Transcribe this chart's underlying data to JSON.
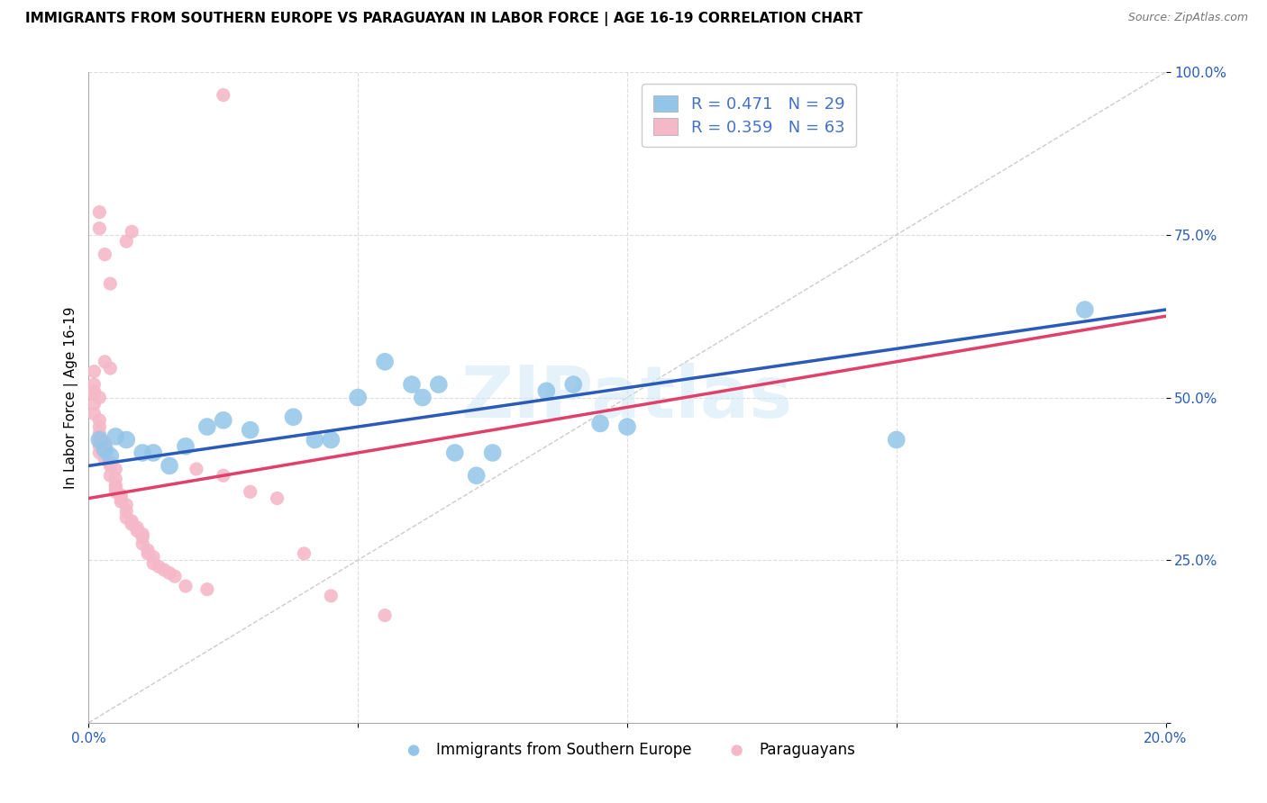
{
  "title": "IMMIGRANTS FROM SOUTHERN EUROPE VS PARAGUAYAN IN LABOR FORCE | AGE 16-19 CORRELATION CHART",
  "source": "Source: ZipAtlas.com",
  "ylabel": "In Labor Force | Age 16-19",
  "ylim": [
    0.0,
    1.0
  ],
  "xlim": [
    0.0,
    0.2
  ],
  "yticks": [
    0.0,
    0.25,
    0.5,
    0.75,
    1.0
  ],
  "ytick_labels": [
    "",
    "25.0%",
    "50.0%",
    "75.0%",
    "100.0%"
  ],
  "xticks": [
    0.0,
    0.05,
    0.1,
    0.15,
    0.2
  ],
  "xtick_labels": [
    "0.0%",
    "",
    "",
    "",
    "20.0%"
  ],
  "legend_r1": "R = 0.471   N = 29",
  "legend_r2": "R = 0.359   N = 63",
  "blue_color": "#92c5e8",
  "pink_color": "#f4b8c8",
  "blue_line_color": "#2b5bb8",
  "pink_line_color": "#e0406a",
  "diag_color": "#cccccc",
  "legend_text_color": "#4472c4",
  "blue_scatter": [
    [
      0.002,
      0.435
    ],
    [
      0.003,
      0.42
    ],
    [
      0.004,
      0.41
    ],
    [
      0.005,
      0.44
    ],
    [
      0.007,
      0.435
    ],
    [
      0.01,
      0.415
    ],
    [
      0.012,
      0.415
    ],
    [
      0.015,
      0.395
    ],
    [
      0.018,
      0.425
    ],
    [
      0.022,
      0.455
    ],
    [
      0.025,
      0.465
    ],
    [
      0.03,
      0.45
    ],
    [
      0.038,
      0.47
    ],
    [
      0.042,
      0.435
    ],
    [
      0.045,
      0.435
    ],
    [
      0.05,
      0.5
    ],
    [
      0.055,
      0.555
    ],
    [
      0.06,
      0.52
    ],
    [
      0.062,
      0.5
    ],
    [
      0.065,
      0.52
    ],
    [
      0.068,
      0.415
    ],
    [
      0.072,
      0.38
    ],
    [
      0.075,
      0.415
    ],
    [
      0.085,
      0.51
    ],
    [
      0.09,
      0.52
    ],
    [
      0.095,
      0.46
    ],
    [
      0.1,
      0.455
    ],
    [
      0.15,
      0.435
    ],
    [
      0.185,
      0.635
    ]
  ],
  "pink_scatter": [
    [
      0.025,
      0.965
    ],
    [
      0.002,
      0.785
    ],
    [
      0.002,
      0.76
    ],
    [
      0.008,
      0.755
    ],
    [
      0.007,
      0.74
    ],
    [
      0.003,
      0.72
    ],
    [
      0.004,
      0.675
    ],
    [
      0.003,
      0.555
    ],
    [
      0.004,
      0.545
    ],
    [
      0.001,
      0.54
    ],
    [
      0.001,
      0.52
    ],
    [
      0.001,
      0.51
    ],
    [
      0.001,
      0.505
    ],
    [
      0.002,
      0.5
    ],
    [
      0.001,
      0.49
    ],
    [
      0.001,
      0.475
    ],
    [
      0.002,
      0.465
    ],
    [
      0.002,
      0.455
    ],
    [
      0.002,
      0.445
    ],
    [
      0.002,
      0.435
    ],
    [
      0.002,
      0.425
    ],
    [
      0.003,
      0.43
    ],
    [
      0.003,
      0.42
    ],
    [
      0.002,
      0.415
    ],
    [
      0.003,
      0.405
    ],
    [
      0.004,
      0.4
    ],
    [
      0.004,
      0.395
    ],
    [
      0.005,
      0.39
    ],
    [
      0.004,
      0.38
    ],
    [
      0.005,
      0.375
    ],
    [
      0.005,
      0.365
    ],
    [
      0.005,
      0.36
    ],
    [
      0.005,
      0.355
    ],
    [
      0.006,
      0.35
    ],
    [
      0.006,
      0.345
    ],
    [
      0.006,
      0.34
    ],
    [
      0.007,
      0.335
    ],
    [
      0.007,
      0.325
    ],
    [
      0.007,
      0.315
    ],
    [
      0.008,
      0.31
    ],
    [
      0.008,
      0.305
    ],
    [
      0.009,
      0.3
    ],
    [
      0.009,
      0.295
    ],
    [
      0.01,
      0.29
    ],
    [
      0.01,
      0.285
    ],
    [
      0.01,
      0.275
    ],
    [
      0.011,
      0.265
    ],
    [
      0.011,
      0.26
    ],
    [
      0.012,
      0.255
    ],
    [
      0.012,
      0.245
    ],
    [
      0.013,
      0.24
    ],
    [
      0.014,
      0.235
    ],
    [
      0.015,
      0.23
    ],
    [
      0.016,
      0.225
    ],
    [
      0.018,
      0.21
    ],
    [
      0.022,
      0.205
    ],
    [
      0.02,
      0.39
    ],
    [
      0.025,
      0.38
    ],
    [
      0.03,
      0.355
    ],
    [
      0.035,
      0.345
    ],
    [
      0.04,
      0.26
    ],
    [
      0.045,
      0.195
    ],
    [
      0.055,
      0.165
    ]
  ],
  "blue_line": [
    [
      0.0,
      0.395
    ],
    [
      0.2,
      0.635
    ]
  ],
  "pink_line": [
    [
      0.0,
      0.345
    ],
    [
      0.2,
      0.625
    ]
  ],
  "diag_line": [
    [
      0.0,
      0.0
    ],
    [
      0.2,
      1.0
    ]
  ],
  "watermark": "ZIPatlas",
  "figsize": [
    14.06,
    8.92
  ],
  "dpi": 100,
  "marker_size_blue": 200,
  "marker_size_pink": 120
}
